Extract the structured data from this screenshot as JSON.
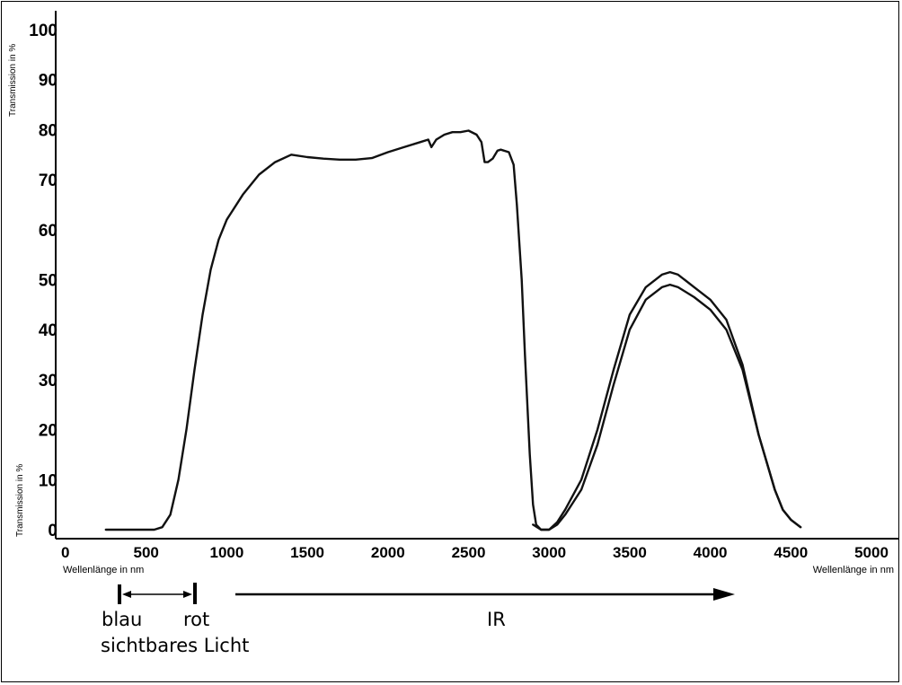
{
  "chart_data": {
    "type": "line",
    "ylabel_top": "Transmission in %",
    "ylabel_bottom": "Transmission in %",
    "xlabel_left": "Wellenlänge in nm",
    "xlabel_right": "Wellenlänge in nm",
    "xlim": [
      0,
      5000
    ],
    "ylim": [
      0,
      100
    ],
    "x_ticks": [
      0,
      500,
      1000,
      1500,
      2000,
      2500,
      3000,
      3500,
      4000,
      4500,
      5000
    ],
    "y_ticks": [
      0,
      10,
      20,
      30,
      40,
      50,
      60,
      70,
      80,
      90,
      100
    ],
    "grid": false,
    "line_color": "#111111",
    "series": [
      {
        "x": [
          250,
          400,
          550,
          600,
          650,
          700,
          750,
          800,
          850,
          900,
          950,
          1000,
          1100,
          1200,
          1300,
          1400,
          1500,
          1600,
          1700,
          1800,
          1900,
          2000,
          2100,
          2200,
          2250,
          2270,
          2300,
          2350,
          2400,
          2450,
          2500,
          2550,
          2580,
          2600,
          2620,
          2650,
          2680,
          2700,
          2750,
          2780,
          2800,
          2830,
          2850,
          2880,
          2900,
          2920,
          2950,
          3000,
          3050,
          3100,
          3200,
          3300,
          3400,
          3500,
          3600,
          3700,
          3750,
          3800,
          3900,
          4000,
          4100,
          4200,
          4300,
          4400,
          4450,
          4500,
          4560
        ],
        "values": [
          0,
          0,
          0,
          0.5,
          3,
          10,
          20,
          32,
          43,
          52,
          58,
          62,
          67,
          71,
          73.5,
          75,
          74.5,
          74.2,
          74,
          74,
          74.3,
          75.5,
          76.5,
          77.5,
          78,
          76.5,
          78,
          79,
          79.5,
          79.5,
          79.8,
          79,
          77.5,
          73.5,
          73.5,
          74.2,
          75.8,
          76,
          75.5,
          73,
          65,
          50,
          35,
          15,
          5,
          1,
          0,
          0,
          1.5,
          4,
          10,
          20,
          32,
          43,
          48.5,
          51,
          51.5,
          51,
          48.5,
          46,
          42,
          33,
          19,
          8,
          4,
          2,
          0.5
        ]
      },
      {
        "x": [
          2900,
          2950,
          3000,
          3050,
          3100,
          3200,
          3300,
          3400,
          3500,
          3600,
          3700,
          3750,
          3800,
          3900,
          4000,
          4100,
          4200,
          4300,
          4400,
          4450,
          4500,
          4560
        ],
        "values": [
          1,
          0,
          0,
          1,
          3,
          8,
          17,
          29,
          40,
          46,
          48.5,
          49,
          48.5,
          46.5,
          44,
          40,
          32,
          19,
          8,
          4,
          2,
          0.5
        ]
      }
    ],
    "annotations": {
      "blau": "blau",
      "rot": "rot",
      "visible": "sichtbares Licht",
      "ir": "IR"
    }
  }
}
